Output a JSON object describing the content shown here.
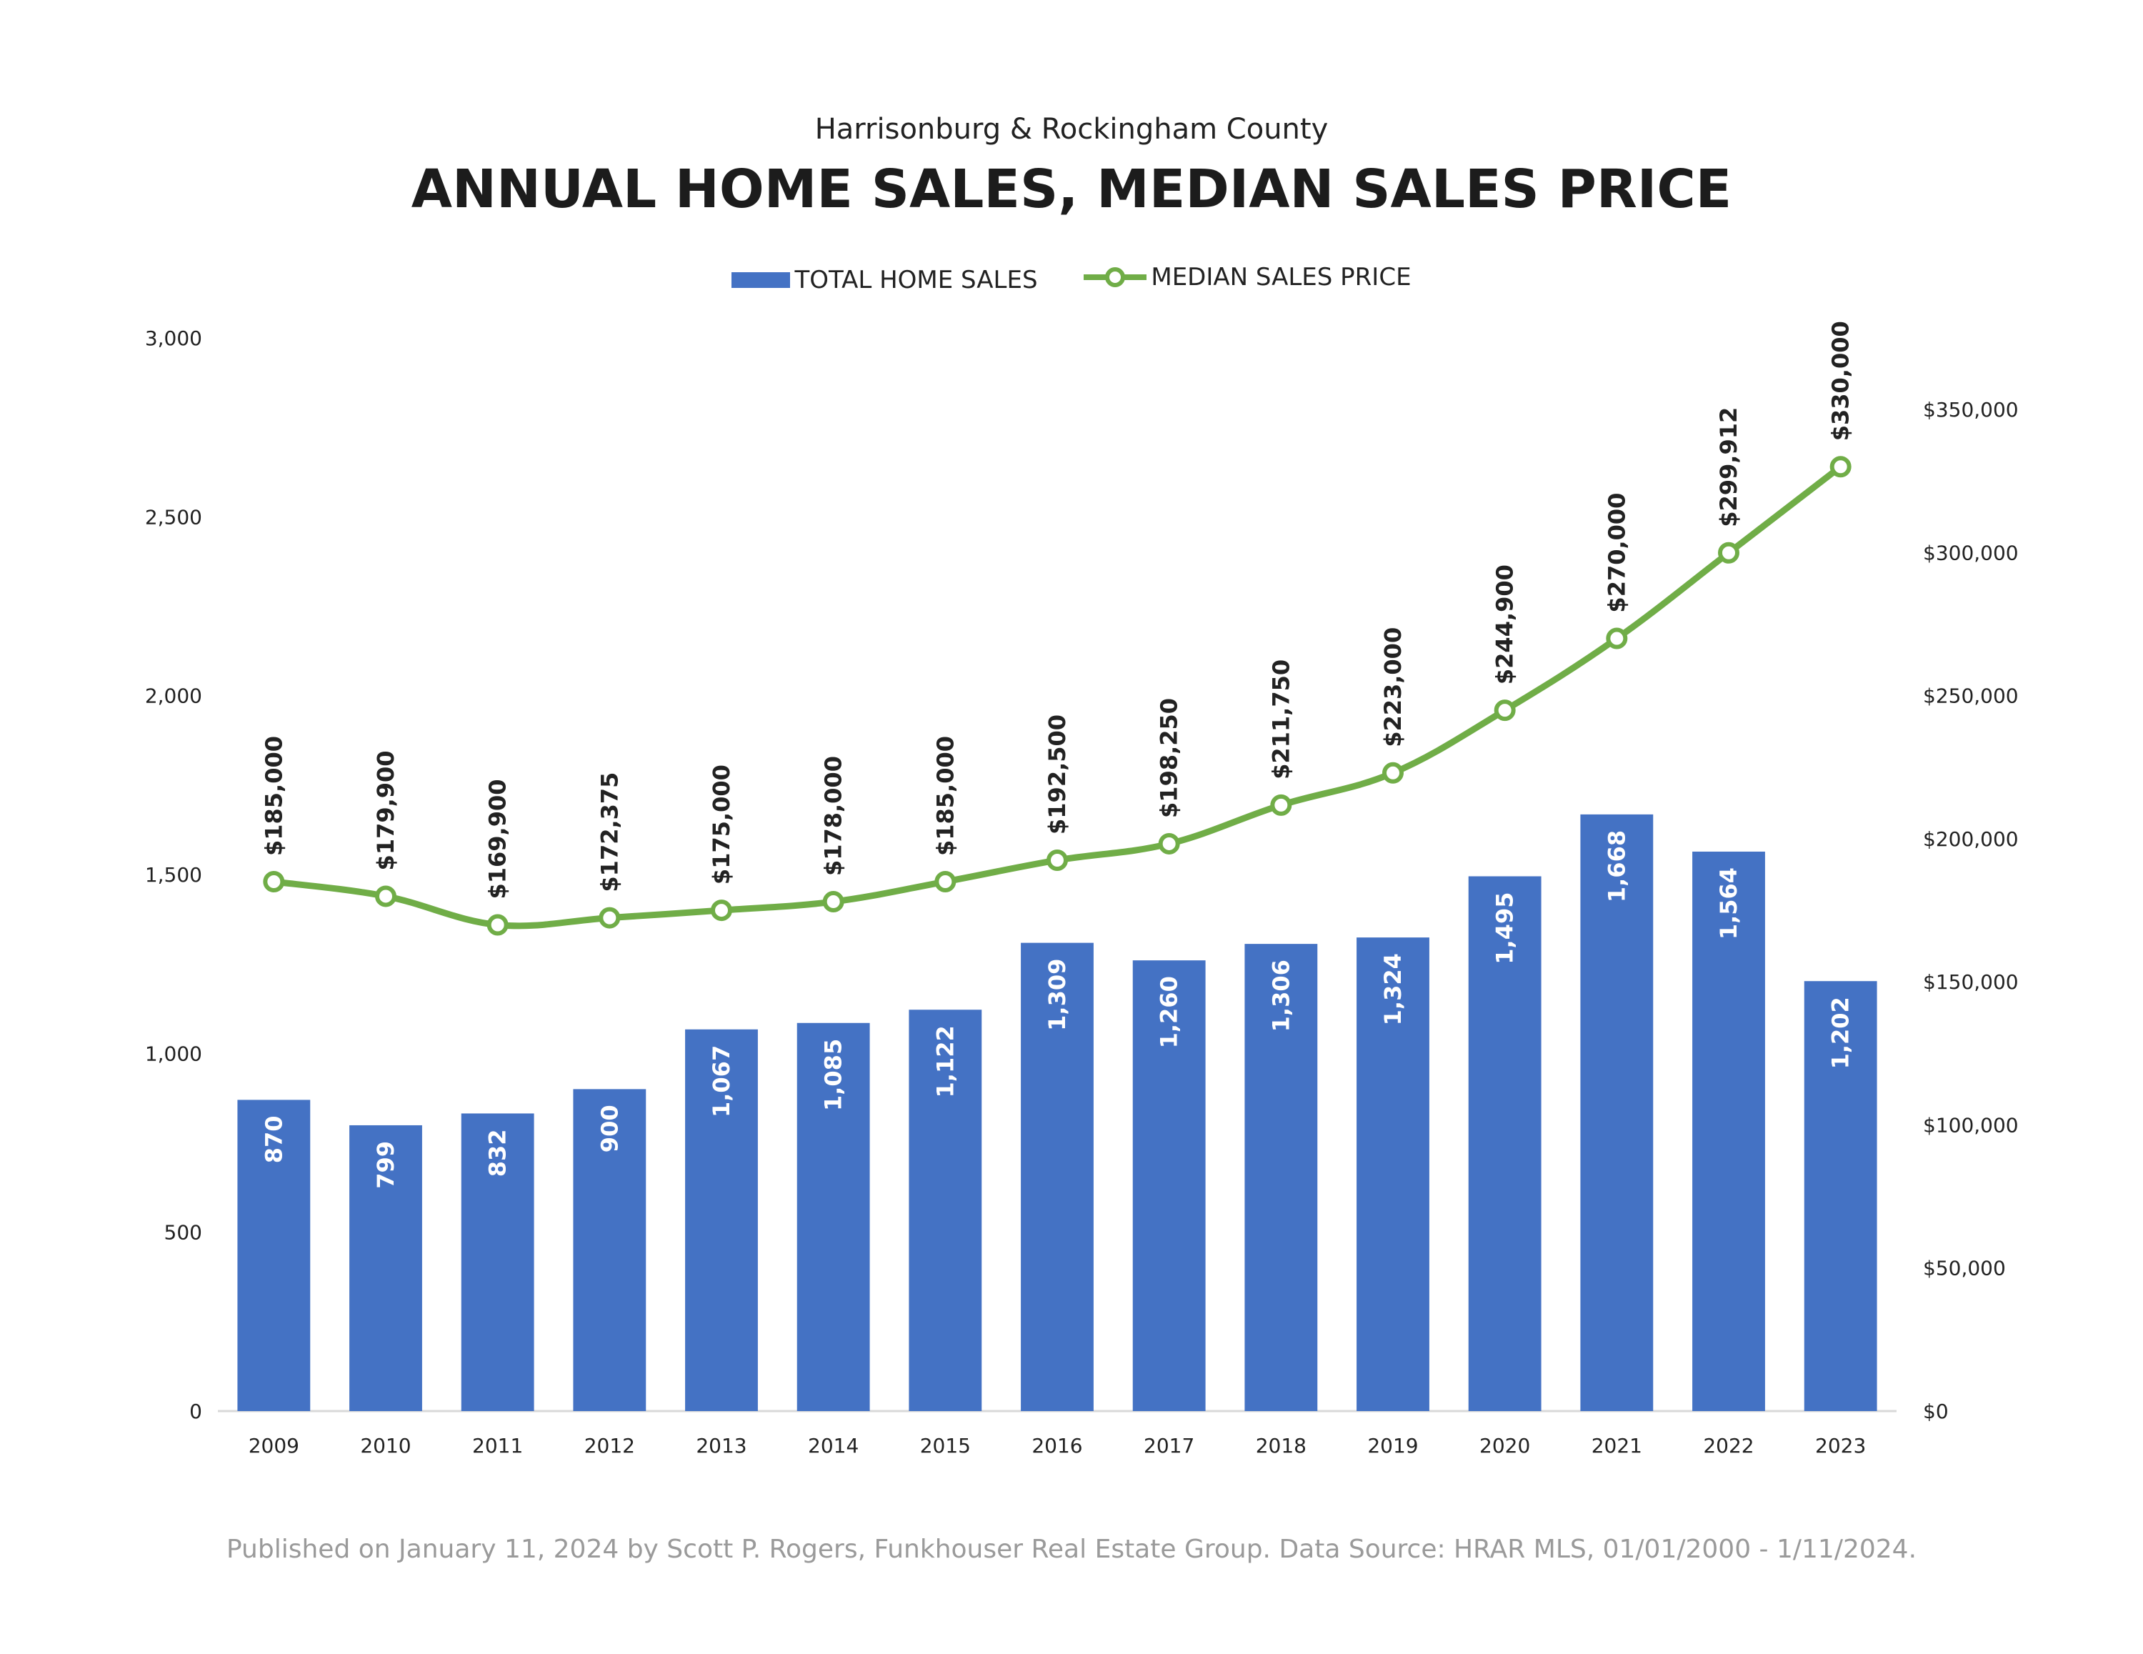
{
  "header": {
    "subtitle": "Harrisonburg & Rockingham County",
    "title": "ANNUAL HOME SALES, MEDIAN SALES PRICE"
  },
  "legend": {
    "sales_label": "TOTAL HOME SALES",
    "price_label": "MEDIAN SALES PRICE"
  },
  "footer": {
    "text": "Published on January 11, 2024 by Scott P. Rogers, Funkhouser Real Estate Group. Data Source: HRAR MLS, 01/01/2000 - 1/11/2024."
  },
  "colors": {
    "bar": "#4472C4",
    "line": "#70AD47",
    "axis": "#D9D9D9"
  },
  "chart_data": {
    "type": "bar",
    "categories": [
      "2009",
      "2010",
      "2011",
      "2012",
      "2013",
      "2014",
      "2015",
      "2016",
      "2017",
      "2018",
      "2019",
      "2020",
      "2021",
      "2022",
      "2023"
    ],
    "series": [
      {
        "name": "TOTAL HOME SALES",
        "type": "bar",
        "axis": "left",
        "values": [
          870,
          799,
          832,
          900,
          1067,
          1085,
          1122,
          1309,
          1260,
          1306,
          1324,
          1495,
          1668,
          1564,
          1202
        ],
        "labels": [
          "870",
          "799",
          "832",
          "900",
          "1,067",
          "1,085",
          "1,122",
          "1,309",
          "1,260",
          "1,306",
          "1,324",
          "1,495",
          "1,668",
          "1,564",
          "1,202"
        ]
      },
      {
        "name": "MEDIAN SALES PRICE",
        "type": "line",
        "axis": "right",
        "values": [
          185000,
          179900,
          169900,
          172375,
          175000,
          178000,
          185000,
          192500,
          198250,
          211750,
          223000,
          244900,
          270000,
          299912,
          330000
        ],
        "labels": [
          "$185,000",
          "$179,900",
          "$169,900",
          "$172,375",
          "$175,000",
          "$178,000",
          "$185,000",
          "$192,500",
          "$198,250",
          "$211,750",
          "$223,000",
          "$244,900",
          "$270,000",
          "$299,912",
          "$330,000"
        ]
      }
    ],
    "left_axis": {
      "ylim": [
        0,
        3000
      ],
      "ticks": [
        0,
        500,
        1000,
        1500,
        2000,
        2500,
        3000
      ],
      "tick_labels": [
        "0",
        "500",
        "1,000",
        "1,500",
        "2,000",
        "2,500",
        "3,000"
      ]
    },
    "right_axis": {
      "ylim": [
        0,
        375000
      ],
      "ticks": [
        0,
        50000,
        100000,
        150000,
        200000,
        250000,
        300000,
        350000
      ],
      "tick_labels": [
        "$0",
        "$50,000",
        "$100,000",
        "$150,000",
        "$200,000",
        "$250,000",
        "$300,000",
        "$350,000"
      ]
    },
    "grid": false,
    "legend_position": "top"
  }
}
